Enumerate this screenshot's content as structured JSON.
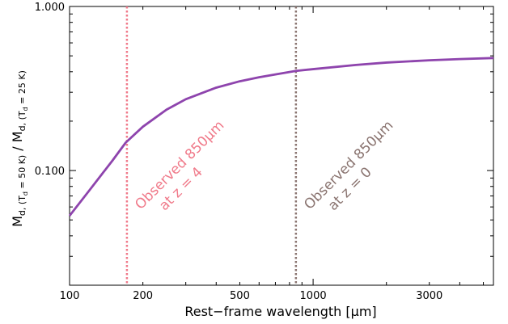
{
  "chart_data": {
    "type": "line",
    "title": "",
    "xlabel": "Rest−frame wavelength [μm]",
    "ylabel": {
      "main_a": "M",
      "sub_a": "d, (T",
      "subsub_a": "d",
      "sub_a_end": " = 50 K)",
      "sep": " / M",
      "sub_b": "d, (T",
      "subsub_b": "d",
      "sub_b_end": " = 25 K)"
    },
    "x_scale": "log",
    "y_scale": "log",
    "xlim": [
      100,
      5500
    ],
    "ylim": [
      0.02,
      1.0
    ],
    "xticks": [
      {
        "value": 100,
        "label": "100"
      },
      {
        "value": 200,
        "label": "200"
      },
      {
        "value": 500,
        "label": "500"
      },
      {
        "value": 1000,
        "label": "1000"
      },
      {
        "value": 3000,
        "label": "3000"
      }
    ],
    "yticks": [
      {
        "value": 0.1,
        "label": "0.100"
      },
      {
        "value": 1.0,
        "label": "1.000"
      }
    ],
    "grid": false,
    "series": [
      {
        "color": "#8e44ad",
        "points": [
          [
            100,
            0.053
          ],
          [
            120,
            0.075
          ],
          [
            150,
            0.115
          ],
          [
            170,
            0.148
          ],
          [
            200,
            0.185
          ],
          [
            250,
            0.235
          ],
          [
            300,
            0.272
          ],
          [
            400,
            0.32
          ],
          [
            500,
            0.35
          ],
          [
            600,
            0.37
          ],
          [
            700,
            0.385
          ],
          [
            850,
            0.405
          ],
          [
            1000,
            0.415
          ],
          [
            1500,
            0.44
          ],
          [
            2000,
            0.455
          ],
          [
            3000,
            0.47
          ],
          [
            4000,
            0.478
          ],
          [
            5500,
            0.485
          ]
        ]
      }
    ],
    "vlines": [
      {
        "x": 172,
        "color": "#f07a8a",
        "label_line1": "Observed 850μm",
        "label_line2": "at z = 4"
      },
      {
        "x": 850,
        "color": "#8a7470",
        "label_line1": "Observed 850μm",
        "label_line2": "at z = 0"
      }
    ]
  }
}
